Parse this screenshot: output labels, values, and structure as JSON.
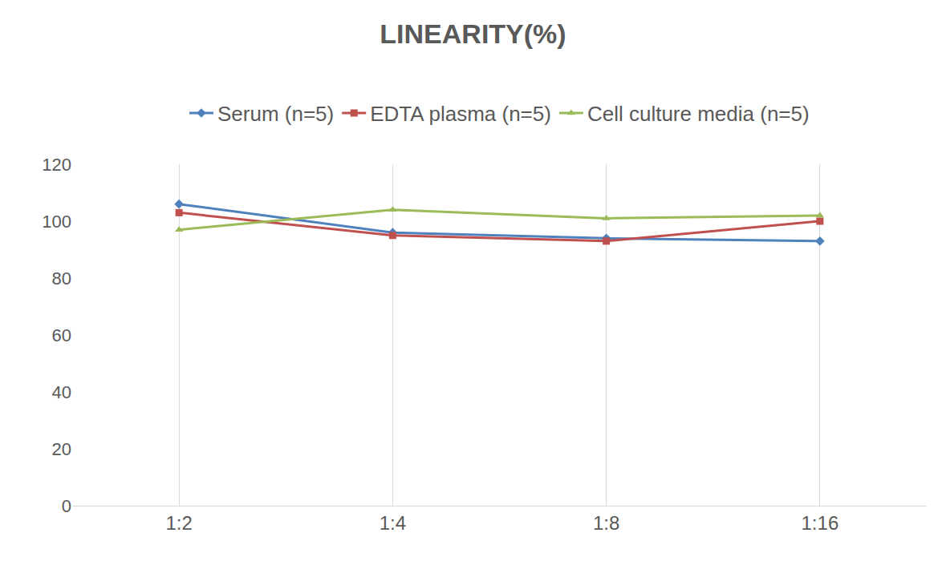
{
  "chart_data": {
    "type": "line",
    "title": "LINEARITY(%)",
    "categories": [
      "1:2",
      "1:4",
      "1:8",
      "1:16"
    ],
    "series": [
      {
        "name": "Serum (n=5)",
        "color": "#4f81bd",
        "marker": "diamond",
        "values": [
          106,
          96,
          94,
          93
        ]
      },
      {
        "name": "EDTA plasma (n=5)",
        "color": "#c0504d",
        "marker": "square",
        "values": [
          103,
          95,
          93,
          100
        ]
      },
      {
        "name": "Cell culture media (n=5)",
        "color": "#9bbb59",
        "marker": "triangle-up",
        "values": [
          97,
          104,
          101,
          102
        ]
      }
    ],
    "ylim": [
      0,
      120
    ],
    "yticks": [
      0,
      20,
      40,
      60,
      80,
      100,
      120
    ],
    "grid": true,
    "legend": "top"
  }
}
